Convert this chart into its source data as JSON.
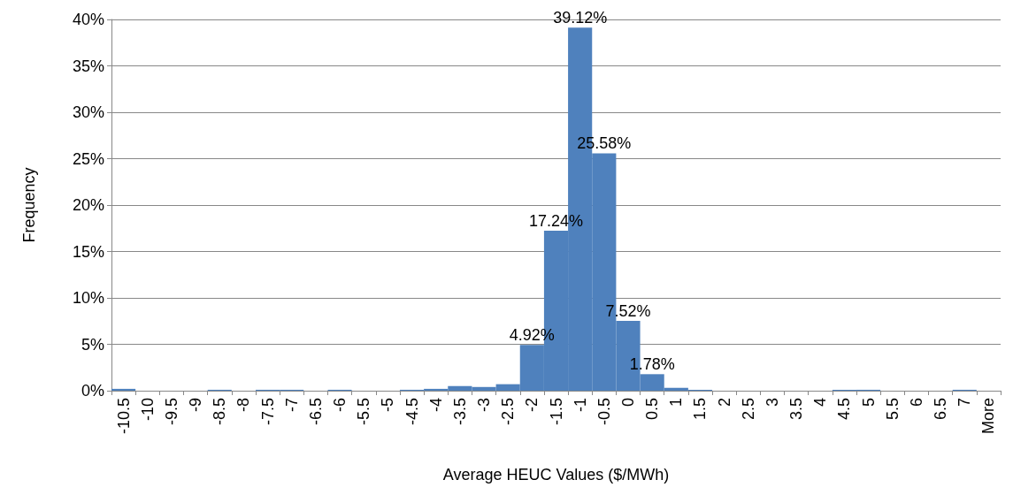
{
  "chart_data": {
    "type": "bar",
    "xlabel": "Average HEUC Values ($/MWh)",
    "ylabel": "Frequency",
    "categories": [
      "-10.5",
      "-10",
      "-9.5",
      "-9",
      "-8.5",
      "-8",
      "-7.5",
      "-7",
      "-6.5",
      "-6",
      "-5.5",
      "-5",
      "-4.5",
      "-4",
      "-3.5",
      "-3",
      "-2.5",
      "-2",
      "-1.5",
      "-1",
      "-0.5",
      "0",
      "0.5",
      "1",
      "1.5",
      "2",
      "2.5",
      "3",
      "3.5",
      "4",
      "4.5",
      "5",
      "5.5",
      "6",
      "6.5",
      "7",
      "More"
    ],
    "values": [
      0.2,
      0,
      0,
      0,
      0.1,
      0,
      0.1,
      0.1,
      0,
      0.1,
      0,
      0,
      0.1,
      0.2,
      0.5,
      0.4,
      0.7,
      4.92,
      17.24,
      39.12,
      25.58,
      7.52,
      1.78,
      0.3,
      0.1,
      0,
      0,
      0,
      0,
      0,
      0.1,
      0.1,
      0,
      0,
      0,
      0.1,
      0
    ],
    "value_labels": [
      null,
      null,
      null,
      null,
      null,
      null,
      null,
      null,
      null,
      null,
      null,
      null,
      null,
      null,
      null,
      null,
      null,
      "4.92%",
      "17.24%",
      "39.12%",
      "25.58%",
      "7.52%",
      "1.78%",
      null,
      null,
      null,
      null,
      null,
      null,
      null,
      null,
      null,
      null,
      null,
      null,
      null,
      null
    ],
    "color": "#4f81bd",
    "ylim": [
      0,
      40
    ],
    "yticks": [
      {
        "value": 0,
        "label": "0%"
      },
      {
        "value": 5,
        "label": "5%"
      },
      {
        "value": 10,
        "label": "10%"
      },
      {
        "value": 15,
        "label": "15%"
      },
      {
        "value": 20,
        "label": "20%"
      },
      {
        "value": 25,
        "label": "25%"
      },
      {
        "value": 30,
        "label": "30%"
      },
      {
        "value": 35,
        "label": "35%"
      },
      {
        "value": 40,
        "label": "40%"
      }
    ],
    "grid": "y"
  }
}
